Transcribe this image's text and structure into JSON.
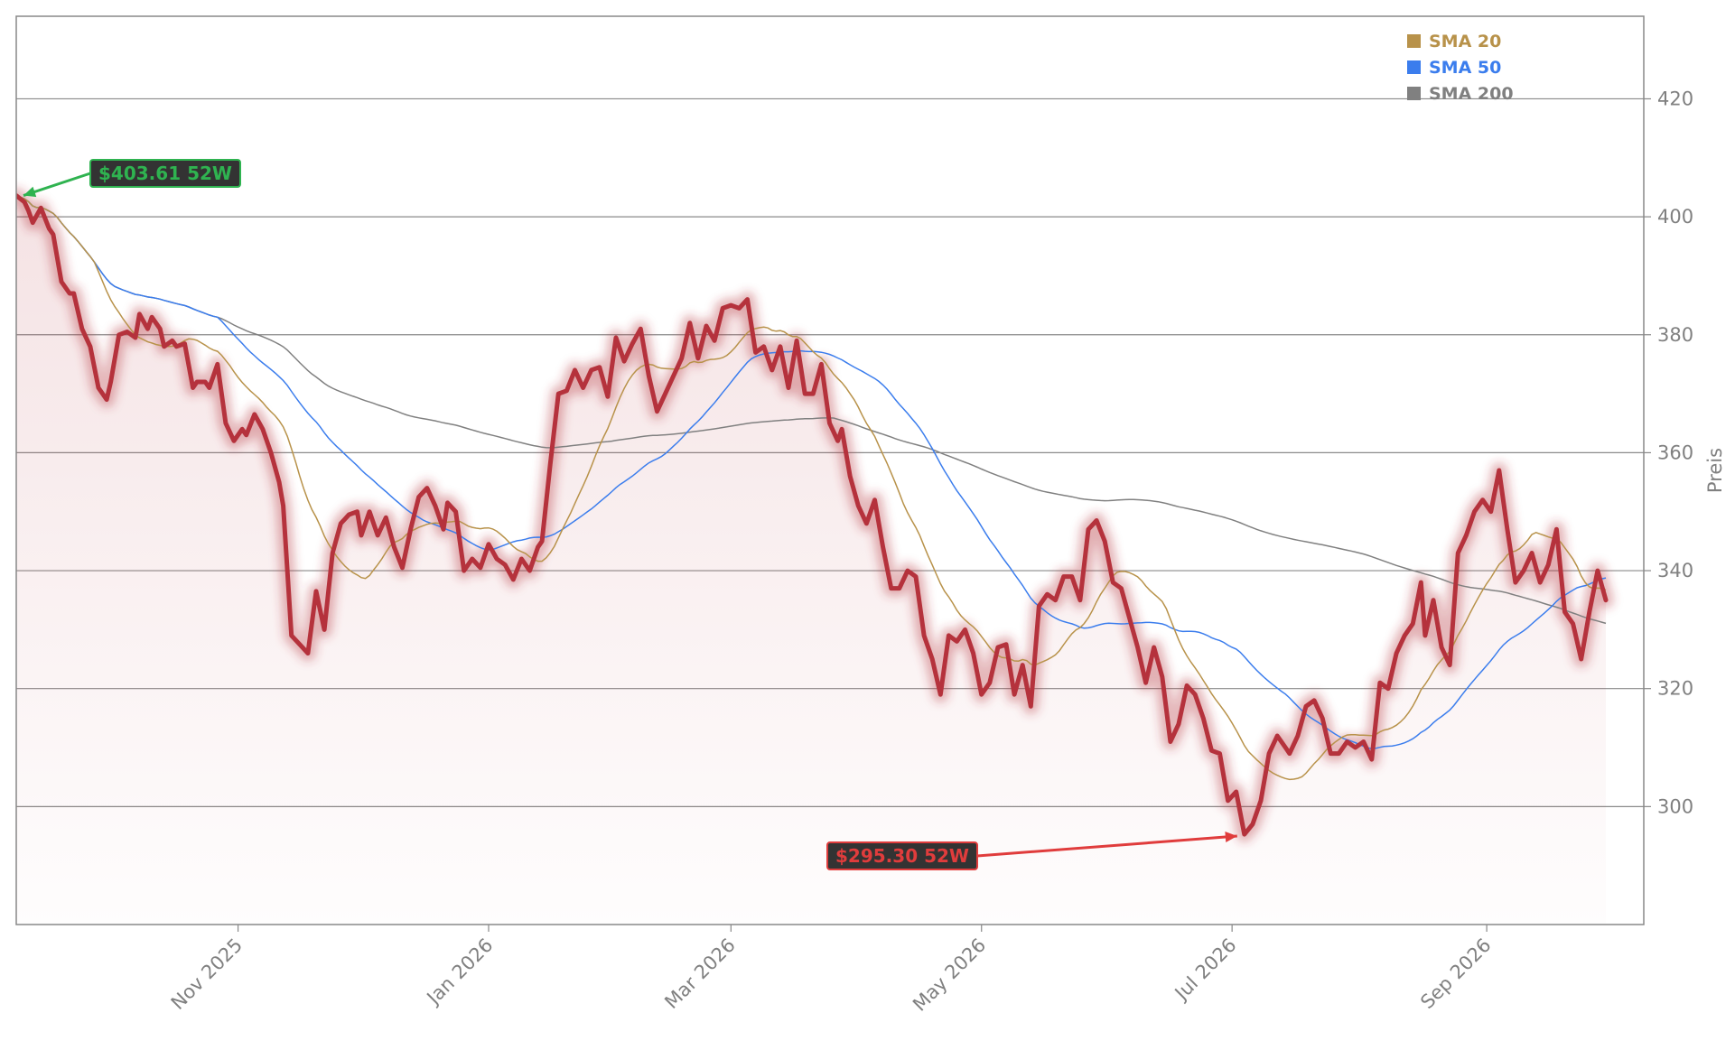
{
  "chart_data": {
    "type": "line",
    "title": "",
    "xlabel": "",
    "ylabel": "Preis",
    "ylim": [
      280,
      434
    ],
    "xlim": [
      "2025-09-08",
      "2026-09-30"
    ],
    "yticks": [
      300,
      320,
      340,
      360,
      380,
      400,
      420
    ],
    "x_axis_type": "date",
    "xticks": [
      {
        "date": "2025-11-01",
        "label": "Nov 2025"
      },
      {
        "date": "2026-01-01",
        "label": "Jan 2026"
      },
      {
        "date": "2026-03-01",
        "label": "Mar 2026"
      },
      {
        "date": "2026-05-01",
        "label": "May 2026"
      },
      {
        "date": "2026-07-01",
        "label": "Jul 2026"
      },
      {
        "date": "2026-09-01",
        "label": "Sep 2026"
      }
    ],
    "grid": "horizontal",
    "legend_position": "top-right",
    "colors": {
      "price": "#b5323c",
      "sma20": "#b8924a",
      "sma50": "#3b7ded",
      "sma200": "#808080",
      "high": "#2fb350",
      "low": "#e03c3c"
    },
    "series": [
      {
        "key": "price",
        "name": "",
        "points": [
          [
            "2025-09-08",
            403.6
          ],
          [
            "2025-09-10",
            402.5
          ],
          [
            "2025-09-11",
            401
          ],
          [
            "2025-09-12",
            399
          ],
          [
            "2025-09-14",
            401.5
          ],
          [
            "2025-09-16",
            398
          ],
          [
            "2025-09-17",
            397
          ],
          [
            "2025-09-19",
            389
          ],
          [
            "2025-09-21",
            387
          ],
          [
            "2025-09-22",
            387
          ],
          [
            "2025-09-24",
            381
          ],
          [
            "2025-09-26",
            378
          ],
          [
            "2025-09-28",
            371
          ],
          [
            "2025-09-30",
            369
          ],
          [
            "2025-10-01",
            372
          ],
          [
            "2025-10-03",
            380
          ],
          [
            "2025-10-05",
            380.5
          ],
          [
            "2025-10-07",
            379.5
          ],
          [
            "2025-10-08",
            383.5
          ],
          [
            "2025-10-10",
            381
          ],
          [
            "2025-10-11",
            383
          ],
          [
            "2025-10-13",
            381
          ],
          [
            "2025-10-14",
            378
          ],
          [
            "2025-10-16",
            379
          ],
          [
            "2025-10-17",
            378
          ],
          [
            "2025-10-19",
            378.5
          ],
          [
            "2025-10-21",
            371
          ],
          [
            "2025-10-22",
            372
          ],
          [
            "2025-10-24",
            372
          ],
          [
            "2025-10-25",
            371
          ],
          [
            "2025-10-27",
            375
          ],
          [
            "2025-10-29",
            365
          ],
          [
            "2025-10-31",
            362
          ],
          [
            "2025-11-02",
            364
          ],
          [
            "2025-11-03",
            363
          ],
          [
            "2025-11-05",
            366.5
          ],
          [
            "2025-11-07",
            364
          ],
          [
            "2025-11-09",
            360
          ],
          [
            "2025-11-11",
            355
          ],
          [
            "2025-11-12",
            351
          ],
          [
            "2025-11-14",
            329
          ],
          [
            "2025-11-16",
            327.5
          ],
          [
            "2025-11-18",
            326
          ],
          [
            "2025-11-20",
            336.5
          ],
          [
            "2025-11-22",
            330
          ],
          [
            "2025-11-24",
            343
          ],
          [
            "2025-11-26",
            348
          ],
          [
            "2025-11-28",
            349.5
          ],
          [
            "2025-11-30",
            350
          ],
          [
            "2025-12-01",
            346
          ],
          [
            "2025-12-03",
            350
          ],
          [
            "2025-12-05",
            346
          ],
          [
            "2025-12-07",
            349
          ],
          [
            "2025-12-09",
            344
          ],
          [
            "2025-12-11",
            340.5
          ],
          [
            "2025-12-13",
            347
          ],
          [
            "2025-12-15",
            352.5
          ],
          [
            "2025-12-17",
            354
          ],
          [
            "2025-12-19",
            351
          ],
          [
            "2025-12-21",
            347
          ],
          [
            "2025-12-22",
            351.5
          ],
          [
            "2025-12-24",
            350
          ],
          [
            "2025-12-26",
            340
          ],
          [
            "2025-12-28",
            342
          ],
          [
            "2025-12-30",
            340.5
          ],
          [
            "2026-01-01",
            344.5
          ],
          [
            "2026-01-03",
            342
          ],
          [
            "2026-01-05",
            341
          ],
          [
            "2026-01-07",
            338.5
          ],
          [
            "2026-01-09",
            342
          ],
          [
            "2026-01-11",
            340
          ],
          [
            "2026-01-13",
            344
          ],
          [
            "2026-01-14",
            345
          ],
          [
            "2026-01-16",
            358
          ],
          [
            "2026-01-18",
            370
          ],
          [
            "2026-01-20",
            370.5
          ],
          [
            "2026-01-22",
            374
          ],
          [
            "2026-01-24",
            371
          ],
          [
            "2026-01-26",
            374
          ],
          [
            "2026-01-28",
            374.5
          ],
          [
            "2026-01-30",
            369.5
          ],
          [
            "2026-02-01",
            379.5
          ],
          [
            "2026-02-03",
            375.5
          ],
          [
            "2026-02-05",
            378.5
          ],
          [
            "2026-02-07",
            381
          ],
          [
            "2026-02-09",
            373
          ],
          [
            "2026-02-11",
            367
          ],
          [
            "2026-02-13",
            370
          ],
          [
            "2026-02-15",
            373
          ],
          [
            "2026-02-17",
            376
          ],
          [
            "2026-02-19",
            382
          ],
          [
            "2026-02-21",
            376
          ],
          [
            "2026-02-23",
            381.5
          ],
          [
            "2026-02-25",
            379
          ],
          [
            "2026-02-27",
            384.5
          ],
          [
            "2026-03-01",
            385
          ],
          [
            "2026-03-03",
            384.5
          ],
          [
            "2026-03-05",
            386
          ],
          [
            "2026-03-07",
            377
          ],
          [
            "2026-03-09",
            378
          ],
          [
            "2026-03-11",
            374
          ],
          [
            "2026-03-13",
            378
          ],
          [
            "2026-03-15",
            371
          ],
          [
            "2026-03-17",
            379
          ],
          [
            "2026-03-19",
            370
          ],
          [
            "2026-03-21",
            370
          ],
          [
            "2026-03-23",
            375
          ],
          [
            "2026-03-25",
            365
          ],
          [
            "2026-03-27",
            362
          ],
          [
            "2026-03-28",
            364
          ],
          [
            "2026-03-30",
            356
          ],
          [
            "2026-04-01",
            351
          ],
          [
            "2026-04-03",
            348
          ],
          [
            "2026-04-05",
            352
          ],
          [
            "2026-04-07",
            344
          ],
          [
            "2026-04-09",
            337
          ],
          [
            "2026-04-11",
            337
          ],
          [
            "2026-04-13",
            340
          ],
          [
            "2026-04-15",
            339
          ],
          [
            "2026-04-17",
            329
          ],
          [
            "2026-04-19",
            325
          ],
          [
            "2026-04-21",
            319
          ],
          [
            "2026-04-23",
            329
          ],
          [
            "2026-04-25",
            328
          ],
          [
            "2026-04-27",
            330
          ],
          [
            "2026-04-29",
            326
          ],
          [
            "2026-05-01",
            319
          ],
          [
            "2026-05-03",
            321
          ],
          [
            "2026-05-05",
            327
          ],
          [
            "2026-05-07",
            327.5
          ],
          [
            "2026-05-09",
            319
          ],
          [
            "2026-05-11",
            324
          ],
          [
            "2026-05-13",
            317
          ],
          [
            "2026-05-15",
            334
          ],
          [
            "2026-05-17",
            336
          ],
          [
            "2026-05-19",
            335
          ],
          [
            "2026-05-21",
            339
          ],
          [
            "2026-05-23",
            339
          ],
          [
            "2026-05-25",
            335
          ],
          [
            "2026-05-27",
            347
          ],
          [
            "2026-05-29",
            348.5
          ],
          [
            "2026-05-31",
            345
          ],
          [
            "2026-06-02",
            338
          ],
          [
            "2026-06-04",
            337
          ],
          [
            "2026-06-06",
            332
          ],
          [
            "2026-06-08",
            327
          ],
          [
            "2026-06-10",
            321
          ],
          [
            "2026-06-12",
            327
          ],
          [
            "2026-06-14",
            322
          ],
          [
            "2026-06-16",
            311
          ],
          [
            "2026-06-18",
            314
          ],
          [
            "2026-06-20",
            320.5
          ],
          [
            "2026-06-22",
            319
          ],
          [
            "2026-06-24",
            315
          ],
          [
            "2026-06-26",
            309.5
          ],
          [
            "2026-06-28",
            309
          ],
          [
            "2026-06-30",
            301
          ],
          [
            "2026-07-02",
            302.5
          ],
          [
            "2026-07-04",
            295.3
          ],
          [
            "2026-07-06",
            297
          ],
          [
            "2026-07-08",
            301
          ],
          [
            "2026-07-10",
            309
          ],
          [
            "2026-07-12",
            312
          ],
          [
            "2026-07-14",
            310
          ],
          [
            "2026-07-15",
            309
          ],
          [
            "2026-07-17",
            312
          ],
          [
            "2026-07-19",
            317
          ],
          [
            "2026-07-21",
            318
          ],
          [
            "2026-07-23",
            315
          ],
          [
            "2026-07-25",
            309
          ],
          [
            "2026-07-27",
            309
          ],
          [
            "2026-07-29",
            311
          ],
          [
            "2026-07-31",
            310
          ],
          [
            "2026-08-02",
            311
          ],
          [
            "2026-08-04",
            308
          ],
          [
            "2026-08-06",
            321
          ],
          [
            "2026-08-08",
            320
          ],
          [
            "2026-08-10",
            326
          ],
          [
            "2026-08-12",
            329
          ],
          [
            "2026-08-14",
            331
          ],
          [
            "2026-08-16",
            338
          ],
          [
            "2026-08-17",
            329
          ],
          [
            "2026-08-19",
            335
          ],
          [
            "2026-08-21",
            327
          ],
          [
            "2026-08-23",
            324
          ],
          [
            "2026-08-25",
            343
          ],
          [
            "2026-08-27",
            346
          ],
          [
            "2026-08-29",
            350
          ],
          [
            "2026-08-31",
            352
          ],
          [
            "2026-09-02",
            350
          ],
          [
            "2026-09-04",
            357
          ],
          [
            "2026-09-06",
            347
          ],
          [
            "2026-09-08",
            338
          ],
          [
            "2026-09-10",
            340
          ],
          [
            "2026-09-12",
            343
          ],
          [
            "2026-09-14",
            338
          ],
          [
            "2026-09-16",
            341
          ],
          [
            "2026-09-18",
            347
          ],
          [
            "2026-09-20",
            333
          ],
          [
            "2026-09-22",
            331
          ],
          [
            "2026-09-24",
            325
          ],
          [
            "2026-09-26",
            333
          ],
          [
            "2026-09-28",
            340
          ],
          [
            "2026-09-30",
            335
          ]
        ]
      },
      {
        "key": "sma20",
        "name": "SMA 20",
        "points": []
      },
      {
        "key": "sma50",
        "name": "SMA 50",
        "points": []
      },
      {
        "key": "sma200",
        "name": "SMA 200",
        "points": []
      }
    ],
    "annotations": [
      {
        "key": "high",
        "text": "$403.61 52W",
        "date": "2025-09-08",
        "value": 403.61
      },
      {
        "key": "low",
        "text": "$295.30 52W",
        "date": "2026-07-04",
        "value": 295.3
      }
    ]
  }
}
